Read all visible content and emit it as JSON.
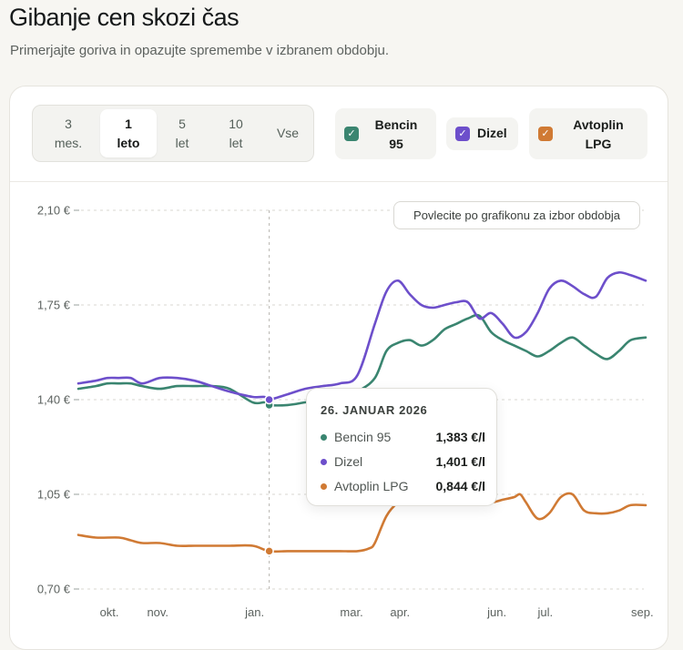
{
  "header": {
    "title": "Gibanje cen skozi čas",
    "subtitle": "Primerjajte goriva in opazujte spremembe v izbranem obdobju."
  },
  "periods": [
    {
      "label": "3\nmes.",
      "active": false
    },
    {
      "label": "1\nleto",
      "active": true
    },
    {
      "label": "5\nlet",
      "active": false
    },
    {
      "label": "10\nlet",
      "active": false
    },
    {
      "label": "Vse",
      "active": false
    }
  ],
  "fuels": [
    {
      "label": "Bencin\n95",
      "color": "#3a8570",
      "checked": true
    },
    {
      "label": "Dizel",
      "color": "#6d4fcb",
      "checked": true
    },
    {
      "label": "Avtoplin\nLPG",
      "color": "#d07a34",
      "checked": true
    }
  ],
  "hint": "Povlecite po grafikonu za izbor obdobja",
  "tooltip": {
    "date": "26. JANUAR 2026",
    "rows": [
      {
        "name": "Bencin 95",
        "value": "1,383 €/l",
        "color": "#3a8570"
      },
      {
        "name": "Dizel",
        "value": "1,401 €/l",
        "color": "#6d4fcb"
      },
      {
        "name": "Avtoplin LPG",
        "value": "0,844 €/l",
        "color": "#d07a34"
      }
    ]
  },
  "chart_data": {
    "type": "line",
    "y_ticks": [
      "2,10 €",
      "1,75 €",
      "1,40 €",
      "1,05 €",
      "0,70 €"
    ],
    "ylim": [
      0.7,
      2.1
    ],
    "x_ticks": [
      {
        "label": "okt.",
        "x": 2.0
      },
      {
        "label": "nov.",
        "x": 3.0
      },
      {
        "label": "jan.",
        "x": 5.0
      },
      {
        "label": "mar.",
        "x": 7.0
      },
      {
        "label": "apr.",
        "x": 8.0
      },
      {
        "label": "jun.",
        "x": 10.0
      },
      {
        "label": "jul.",
        "x": 11.0
      },
      {
        "label": "sep.",
        "x": 13.0
      }
    ],
    "xlim": [
      1.36,
      13.07
    ],
    "highlight_x": 5.3,
    "series": [
      {
        "name": "Bencin 95",
        "color": "#3a8570",
        "x": [
          1.36,
          1.72,
          1.96,
          2.2,
          2.44,
          2.68,
          3.04,
          3.4,
          3.76,
          4.12,
          4.48,
          4.96,
          5.2,
          5.3,
          5.68,
          6.04,
          6.4,
          6.76,
          7.12,
          7.48,
          7.72,
          7.96,
          8.2,
          8.44,
          8.68,
          8.92,
          9.16,
          9.4,
          9.64,
          9.88,
          10.12,
          10.36,
          10.6,
          10.84,
          11.08,
          11.32,
          11.56,
          11.8,
          12.04,
          12.28,
          12.52,
          12.76,
          13.07
        ],
        "y": [
          1.44,
          1.45,
          1.46,
          1.46,
          1.46,
          1.45,
          1.44,
          1.45,
          1.45,
          1.45,
          1.44,
          1.39,
          1.39,
          1.38,
          1.38,
          1.39,
          1.4,
          1.41,
          1.43,
          1.48,
          1.58,
          1.61,
          1.62,
          1.6,
          1.62,
          1.66,
          1.68,
          1.7,
          1.71,
          1.65,
          1.62,
          1.6,
          1.58,
          1.56,
          1.58,
          1.61,
          1.63,
          1.6,
          1.57,
          1.55,
          1.58,
          1.62,
          1.63
        ]
      },
      {
        "name": "Dizel",
        "color": "#6d4fcb",
        "x": [
          1.36,
          1.72,
          1.96,
          2.2,
          2.44,
          2.68,
          3.04,
          3.4,
          3.76,
          4.12,
          4.48,
          4.96,
          5.2,
          5.3,
          5.68,
          6.04,
          6.4,
          6.76,
          7.12,
          7.48,
          7.72,
          7.96,
          8.2,
          8.44,
          8.68,
          8.92,
          9.16,
          9.4,
          9.64,
          9.88,
          10.12,
          10.36,
          10.6,
          10.84,
          11.08,
          11.32,
          11.56,
          11.8,
          12.04,
          12.28,
          12.52,
          12.76,
          13.07
        ],
        "y": [
          1.46,
          1.47,
          1.48,
          1.48,
          1.48,
          1.46,
          1.48,
          1.48,
          1.47,
          1.45,
          1.43,
          1.41,
          1.41,
          1.4,
          1.42,
          1.44,
          1.45,
          1.46,
          1.49,
          1.68,
          1.8,
          1.84,
          1.79,
          1.75,
          1.74,
          1.75,
          1.76,
          1.76,
          1.7,
          1.72,
          1.68,
          1.63,
          1.65,
          1.72,
          1.81,
          1.84,
          1.82,
          1.79,
          1.78,
          1.85,
          1.87,
          1.86,
          1.84
        ]
      },
      {
        "name": "Avtoplin LPG",
        "color": "#d07a34",
        "x": [
          1.36,
          1.72,
          2.2,
          2.44,
          2.68,
          3.04,
          3.4,
          3.76,
          4.12,
          4.48,
          4.96,
          5.3,
          5.68,
          6.04,
          6.4,
          6.76,
          7.12,
          7.36,
          7.48,
          7.72,
          7.96,
          8.2,
          8.44,
          8.68,
          8.92,
          9.16,
          9.4,
          9.64,
          9.88,
          10.12,
          10.36,
          10.48,
          10.6,
          10.84,
          11.08,
          11.32,
          11.56,
          11.8,
          12.04,
          12.28,
          12.52,
          12.76,
          13.07
        ],
        "y": [
          0.9,
          0.89,
          0.89,
          0.88,
          0.87,
          0.87,
          0.86,
          0.86,
          0.86,
          0.86,
          0.86,
          0.84,
          0.84,
          0.84,
          0.84,
          0.84,
          0.84,
          0.85,
          0.87,
          0.97,
          1.02,
          1.04,
          1.03,
          1.03,
          1.04,
          1.03,
          1.02,
          1.03,
          1.02,
          1.03,
          1.04,
          1.05,
          1.02,
          0.96,
          0.98,
          1.04,
          1.05,
          0.99,
          0.98,
          0.98,
          0.99,
          1.01,
          1.01
        ]
      }
    ]
  }
}
